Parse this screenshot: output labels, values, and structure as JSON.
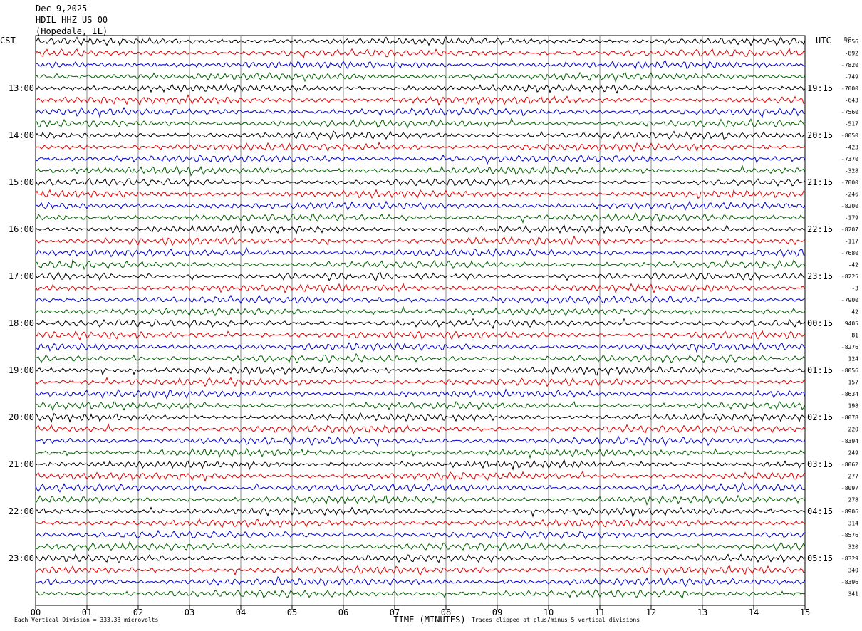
{
  "header": {
    "date": "Dec 9,2025",
    "station": "HDIL HHZ US 00",
    "location": "(Hopedale, IL)"
  },
  "footer": {
    "scale_note": "Each Vertical Division =  333.33 microvolts",
    "clip_note": "Traces clipped at plus/minus 5 vertical divisions"
  },
  "chart_data": {
    "type": "line",
    "title": "Dec 9,2025 HDIL HHZ US 00 (Hopedale, IL)",
    "xlabel": "TIME (MINUTES)",
    "xlim": [
      0,
      15
    ],
    "x_tick_labels": [
      "00",
      "01",
      "02",
      "03",
      "04",
      "05",
      "06",
      "07",
      "08",
      "09",
      "10",
      "11",
      "12",
      "13",
      "14",
      "15"
    ],
    "left_axis_label": "CST",
    "right_axis_label": "UTC",
    "dc_label": "DC",
    "left_time_labels": [
      "13:00",
      "14:00",
      "15:00",
      "16:00",
      "17:00",
      "18:00",
      "19:00",
      "20:00",
      "21:00",
      "22:00",
      "23:00"
    ],
    "right_time_labels": [
      "19:15",
      "20:15",
      "21:15",
      "22:15",
      "23:15",
      "00:15",
      "01:15",
      "02:15",
      "03:15",
      "04:15",
      "05:15"
    ],
    "trace_colors": [
      "#000000",
      "#e00000",
      "#0000d0",
      "#006000"
    ],
    "trace_count": 48,
    "dc_offsets": [
      "-856",
      "-892",
      "-7820",
      "-749",
      "-7000",
      "-643",
      "-7560",
      "-517",
      "-8050",
      "-423",
      "-7370",
      "-328",
      "-7000",
      "-246",
      "-8200",
      "-179",
      "-8207",
      "-117",
      "-7680",
      "-42",
      "-8225",
      "-3",
      "-7900",
      "42",
      "9405",
      "81",
      "-8276",
      "124",
      "-8056",
      "157",
      "-8634",
      "198",
      "-8078",
      "220",
      "-8394",
      "249",
      "-8062",
      "277",
      "-8097",
      "278",
      "-8906",
      "314",
      "-8576",
      "320",
      "-8329",
      "340",
      "-8396",
      "341"
    ],
    "grid": true
  }
}
